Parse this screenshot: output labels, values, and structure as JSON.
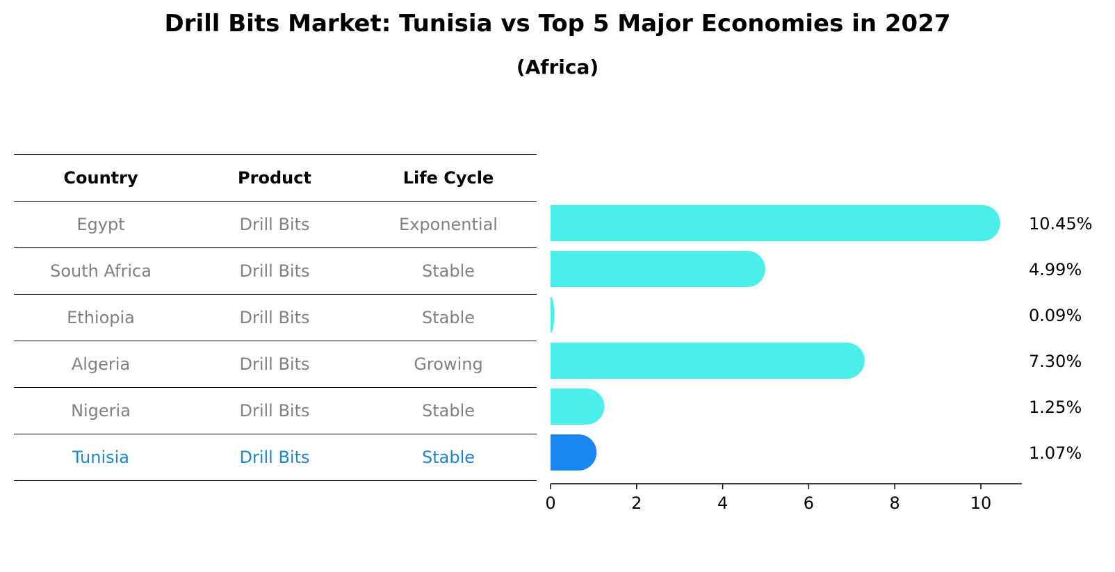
{
  "title": "Drill Bits Market: Tunisia vs Top 5 Major Economies in 2027",
  "subtitle": "(Africa)",
  "table": {
    "headers": [
      "Country",
      "Product",
      "Life Cycle"
    ],
    "rows": [
      [
        "Egypt",
        "Drill Bits",
        "Exponential"
      ],
      [
        "South Africa",
        "Drill Bits",
        "Stable"
      ],
      [
        "Ethiopia",
        "Drill Bits",
        "Stable"
      ],
      [
        "Algeria",
        "Drill Bits",
        "Growing"
      ],
      [
        "Nigeria",
        "Drill Bits",
        "Stable"
      ],
      [
        "Tunisia",
        "Drill Bits",
        "Stable"
      ]
    ]
  },
  "chart_data": {
    "type": "bar",
    "orientation": "horizontal",
    "categories": [
      "Egypt",
      "South Africa",
      "Ethiopia",
      "Algeria",
      "Nigeria",
      "Tunisia"
    ],
    "values": [
      10.45,
      4.99,
      0.09,
      7.3,
      1.25,
      1.07
    ],
    "value_labels": [
      "10.45%",
      "4.99%",
      "0.09%",
      "7.30%",
      "1.25%",
      "1.07%"
    ],
    "highlight_index": 5,
    "xlim": [
      0,
      11
    ],
    "xticks": [
      0,
      2,
      4,
      6,
      8,
      10
    ],
    "grid": false,
    "colors": {
      "bar": "#4deee9",
      "highlight": "#1a86f0",
      "highlight_text": "#1a86d0",
      "muted_text": "#808080"
    }
  }
}
